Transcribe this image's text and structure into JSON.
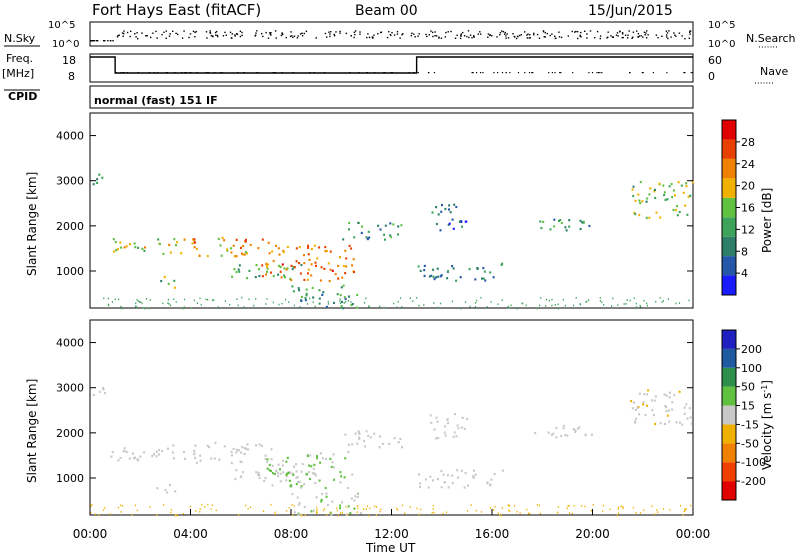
{
  "header": {
    "station": "Fort Hays East (fitACF)",
    "beam": "Beam 00",
    "date": "15/Jun/2015"
  },
  "labels": {
    "nsky": "N.Sky",
    "nsearch": "N.Search",
    "freq": "Freq.",
    "mhz": "[MHz]",
    "nave": "Nave",
    "cpid": "CPID",
    "mode": "normal (fast) 151 IF",
    "slant_range": "Slant Range [km]",
    "time_axis": "Time UT",
    "power_label": "Power [dB]",
    "velocity_label": "Velocity [m s",
    "velocity_sup": "-1",
    "velocity_close": "]"
  },
  "ticks": {
    "noise_left": [
      "10^5",
      "10^0"
    ],
    "noise_right": [
      "10^5",
      "10^0"
    ],
    "freq_left": [
      "18",
      "8"
    ],
    "nave_right": [
      "60",
      "0"
    ],
    "range": [
      "1000",
      "2000",
      "3000",
      "4000"
    ],
    "time": [
      "00:00",
      "04:00",
      "08:00",
      "12:00",
      "16:00",
      "20:00",
      "00:00"
    ]
  },
  "colors": {
    "power_scale": [
      "#1a1aff",
      "#2457a8",
      "#2d7f6a",
      "#3ea35a",
      "#60c040",
      "#f0b000",
      "#f08000",
      "#e84000",
      "#e00000"
    ],
    "velocity_scale": [
      "#e00000",
      "#f04000",
      "#f08000",
      "#f0b000",
      "#c8c8c8",
      "#60c040",
      "#2d8f4a",
      "#1f5aa0",
      "#2020c0"
    ]
  },
  "chart_data": {
    "type": "heatmap",
    "x_range_hours": [
      0,
      24
    ],
    "y_range_km": [
      180,
      4500
    ],
    "power_colorbar": {
      "label": "Power [dB]",
      "ticks": [
        "4",
        "8",
        "12",
        "16",
        "20",
        "24",
        "28"
      ],
      "range": [
        0,
        30
      ]
    },
    "velocity_colorbar": {
      "label": "Velocity [m s-1]",
      "ticks": [
        "-200",
        "-100",
        "-50",
        "-15",
        "15",
        "50",
        "100",
        "200"
      ],
      "range": [
        -250,
        250
      ]
    },
    "frequency_mhz": [
      {
        "from_hour": 0,
        "to_hour": 1,
        "value": 18
      },
      {
        "from_hour": 1,
        "to_hour": 13,
        "value": 10
      },
      {
        "from_hour": 13,
        "to_hour": 24,
        "value": 18
      }
    ],
    "scatter_regions": [
      {
        "t0": 0.0,
        "t1": 0.6,
        "r0": 2850,
        "r1": 3200,
        "power": 8,
        "velocity": -10
      },
      {
        "t0": 0.8,
        "t1": 4.2,
        "r0": 1400,
        "r1": 1750,
        "power": 18,
        "velocity": -5
      },
      {
        "t0": 4.0,
        "t1": 7.2,
        "r0": 1350,
        "r1": 1800,
        "power": 20,
        "velocity": 5
      },
      {
        "t0": 2.6,
        "t1": 3.4,
        "r0": 650,
        "r1": 900,
        "power": 14,
        "velocity": -10
      },
      {
        "t0": 5.5,
        "t1": 8.5,
        "r0": 850,
        "r1": 1200,
        "power": 12,
        "velocity": 10
      },
      {
        "t0": 6.8,
        "t1": 10.5,
        "r0": 800,
        "r1": 1600,
        "power": 22,
        "velocity": 30
      },
      {
        "t0": 8.0,
        "t1": 10.8,
        "r0": 200,
        "r1": 700,
        "power": 10,
        "velocity": 20
      },
      {
        "t0": 10.0,
        "t1": 12.4,
        "r0": 1700,
        "r1": 2100,
        "power": 10,
        "velocity": -10
      },
      {
        "t0": 13.0,
        "t1": 16.5,
        "r0": 800,
        "r1": 1200,
        "power": 8,
        "velocity": -5
      },
      {
        "t0": 13.5,
        "t1": 15.0,
        "r0": 1900,
        "r1": 2500,
        "power": 6,
        "velocity": -10
      },
      {
        "t0": 17.5,
        "t1": 20.0,
        "r0": 1900,
        "r1": 2200,
        "power": 10,
        "velocity": -5
      },
      {
        "t0": 21.5,
        "t1": 24.0,
        "r0": 2200,
        "r1": 3000,
        "power": 14,
        "velocity": -15
      }
    ]
  }
}
